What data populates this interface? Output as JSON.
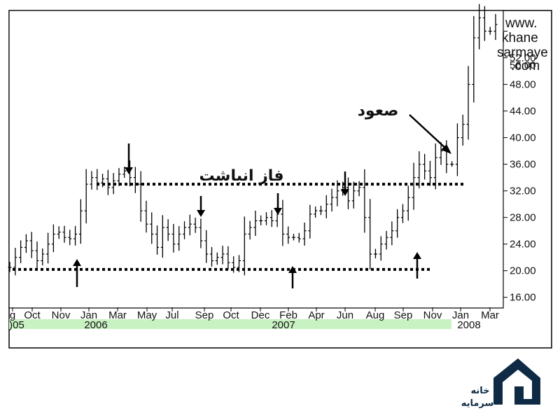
{
  "chart_data": {
    "type": "ohlc",
    "x_ticks": [
      "g",
      "Oct",
      "Nov",
      "Jan",
      "Mar",
      "May",
      "Jul",
      "Sep",
      "Oct",
      "Dec",
      "Feb",
      "Apr",
      "Jun",
      "Aug",
      "Sep",
      "Nov",
      "Jan",
      "Mar"
    ],
    "year_labels": [
      ")05",
      "2006",
      "2007",
      "2008"
    ],
    "y_ticks": [
      "16.00",
      "20.00",
      "24.00",
      "28.00",
      "32.00",
      "36.00",
      "40.00",
      "44.00",
      "48.00",
      "52.00",
      "56.00"
    ],
    "ylim": [
      14.5,
      59
    ],
    "annotations": {
      "accumulation": "فاز انباشت",
      "markup": "صعود"
    },
    "levels": [
      {
        "name": "support",
        "value": 20.2
      },
      {
        "name": "resistance",
        "value": 33.0
      }
    ],
    "price_path": [
      20.5,
      22,
      23.5,
      24.5,
      23,
      21.5,
      22.5,
      24,
      25.5,
      25.8,
      25,
      24.8,
      25.5,
      29,
      33,
      34,
      33.2,
      33.8,
      32.5,
      33.5,
      34.5,
      35,
      34,
      33,
      29,
      27,
      25.5,
      23.5,
      26.5,
      25.5,
      24,
      25.5,
      26.5,
      27,
      26.5,
      24.5,
      22.5,
      21.5,
      22,
      22.5,
      21.2,
      20.5,
      21.5,
      25.5,
      26.5,
      27.5,
      27.5,
      28,
      27.5,
      28.5,
      25.5,
      25,
      25,
      24.8,
      26,
      28.5,
      29,
      29,
      30,
      31,
      32,
      32.5,
      30.5,
      32,
      32.5,
      28,
      22.5,
      22.5,
      24,
      25,
      26,
      28,
      29,
      31,
      34,
      36,
      35,
      34,
      37,
      38,
      36,
      36,
      40,
      42,
      48,
      55,
      58,
      56,
      56,
      57
    ],
    "colors": {
      "price": "#000000",
      "year_band": "#c9f2c2",
      "frame": "#000000"
    }
  },
  "watermark": {
    "line1": "www.",
    "line2": "khane",
    "line3": "sarmaye",
    "line4": ".com",
    "price_overlap": "56.00"
  },
  "logo": {
    "line1": "خانه",
    "line2": "سرمایه",
    "color": "#0f2a44"
  }
}
